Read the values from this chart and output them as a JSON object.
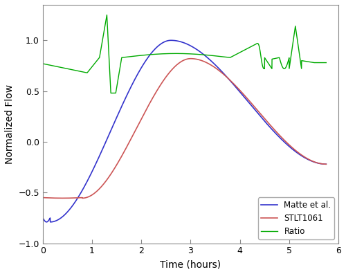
{
  "xlabel": "Time (hours)",
  "ylabel": "Normalized Flow",
  "xlim": [
    0,
    6
  ],
  "ylim": [
    -1,
    1.35
  ],
  "yticks": [
    -1,
    -0.5,
    0,
    0.5,
    1
  ],
  "xticks": [
    0,
    1,
    2,
    3,
    4,
    5,
    6
  ],
  "blue_color": "#3333cc",
  "red_color": "#cc5555",
  "green_color": "#00aa00",
  "legend_labels": [
    "Matte et al.",
    "STLT1061",
    "Ratio"
  ],
  "bg_color": "#ffffff"
}
